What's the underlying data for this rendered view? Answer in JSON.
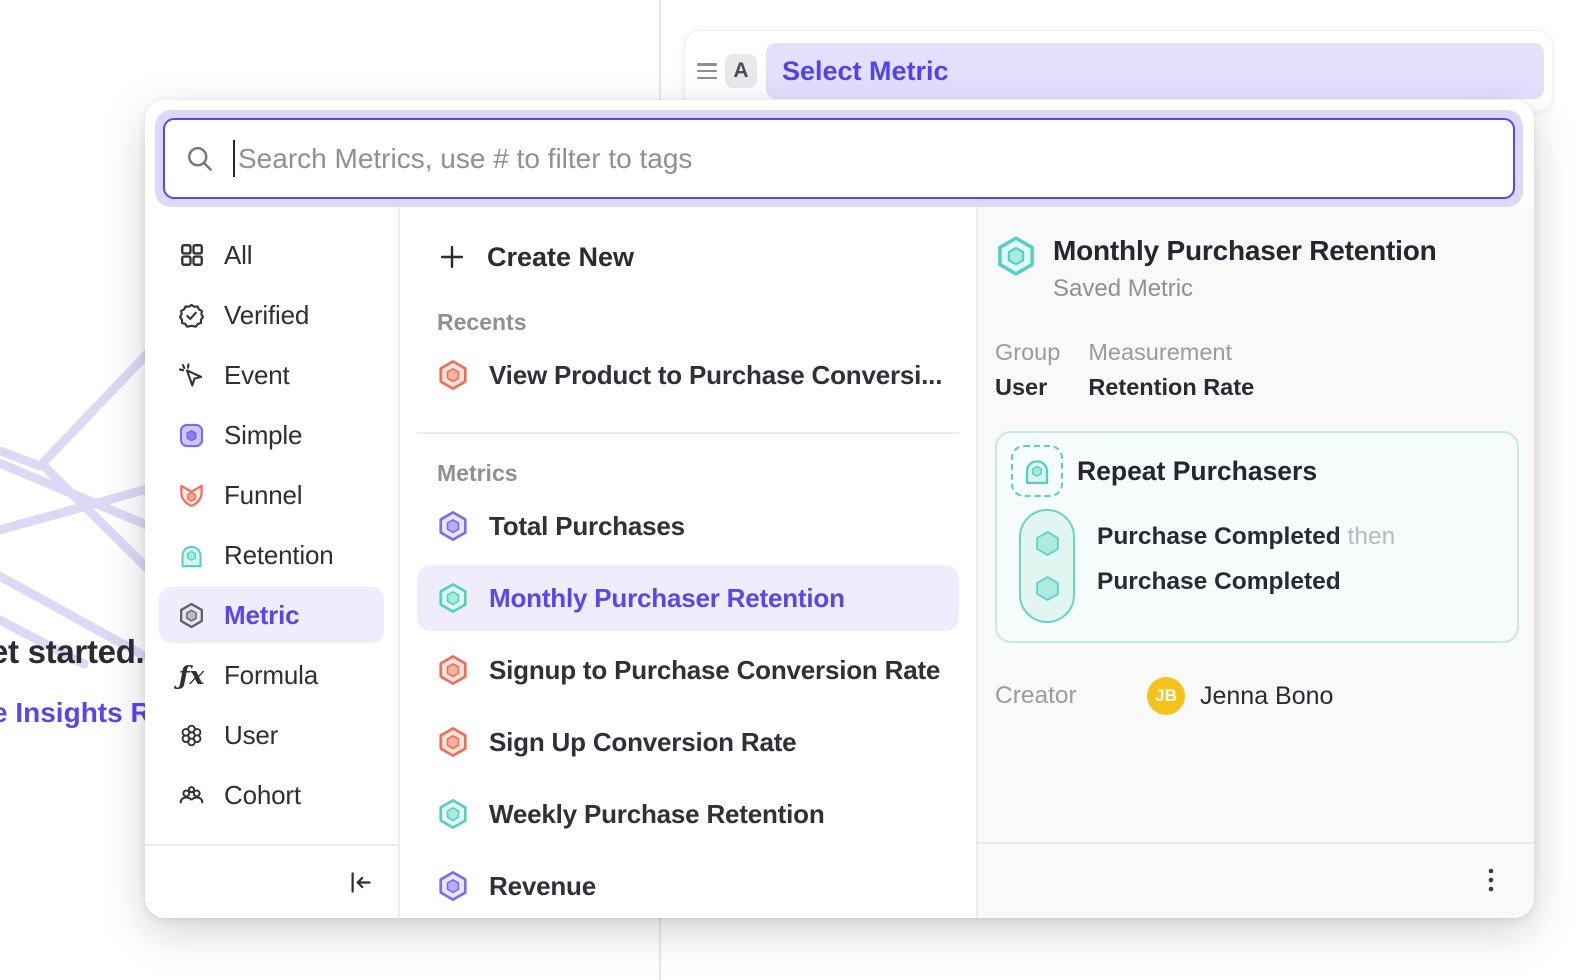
{
  "background": {
    "headline_fragment": "et started.",
    "link_fragment": "e Insights Re"
  },
  "metric_bar": {
    "row_label_letter": "A",
    "selected_value": "Select Metric"
  },
  "search": {
    "placeholder": "Search Metrics, use # to filter to tags"
  },
  "sidebar": {
    "items": [
      {
        "label": "All",
        "icon": "grid-icon",
        "selected": false
      },
      {
        "label": "Verified",
        "icon": "verified-badge-icon",
        "selected": false
      },
      {
        "label": "Event",
        "icon": "event-cursor-icon",
        "selected": false
      },
      {
        "label": "Simple",
        "icon": "simple-metric-icon",
        "selected": false
      },
      {
        "label": "Funnel",
        "icon": "funnel-metric-icon",
        "selected": false
      },
      {
        "label": "Retention",
        "icon": "retention-metric-icon",
        "selected": false
      },
      {
        "label": "Metric",
        "icon": "metric-hexagon-icon",
        "selected": true
      },
      {
        "label": "Formula",
        "icon": "formula-icon",
        "selected": false
      },
      {
        "label": "User",
        "icon": "user-cluster-icon",
        "selected": false
      },
      {
        "label": "Cohort",
        "icon": "cohort-people-icon",
        "selected": false
      }
    ]
  },
  "list": {
    "create_new_label": "Create New",
    "sections": [
      {
        "label": "Recents",
        "items": [
          {
            "label": "View Product to Purchase Conversi...",
            "type": "coral",
            "selected": false
          }
        ]
      },
      {
        "label": "Metrics",
        "items": [
          {
            "label": "Total Purchases",
            "type": "purple",
            "selected": false
          },
          {
            "label": "Monthly Purchaser Retention",
            "type": "teal",
            "selected": true
          },
          {
            "label": "Signup to Purchase Conversion Rate",
            "type": "coral",
            "selected": false
          },
          {
            "label": "Sign Up Conversion Rate",
            "type": "coral",
            "selected": false
          },
          {
            "label": "Weekly Purchase Retention",
            "type": "teal",
            "selected": false
          },
          {
            "label": "Revenue",
            "type": "purple",
            "selected": false
          }
        ]
      }
    ]
  },
  "detail": {
    "title": "Monthly Purchaser Retention",
    "subtitle": "Saved Metric",
    "fields": [
      {
        "label": "Group",
        "value": "User"
      },
      {
        "label": "Measurement",
        "value": "Retention Rate"
      }
    ],
    "card": {
      "title": "Repeat Purchasers",
      "steps": [
        {
          "event": "Purchase Completed",
          "connector": "then"
        },
        {
          "event": "Purchase Completed",
          "connector": ""
        }
      ]
    },
    "creator_label": "Creator",
    "creator_initials": "JB",
    "creator_name": "Jenna Bono"
  },
  "colors": {
    "accent_indigo": "#5847f0",
    "selected_bg": "#efecfc",
    "teal": "#54d0c1",
    "coral": "#ef6e57",
    "purple": "#7b6cf0",
    "avatar_yellow": "#f3c21b",
    "panel_bg": "#f8f9f9"
  }
}
